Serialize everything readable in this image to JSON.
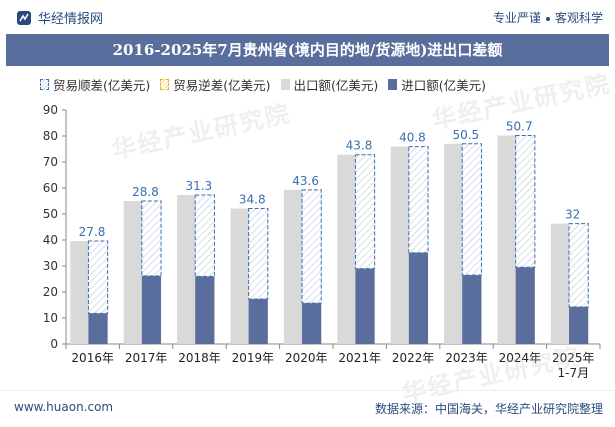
{
  "header": {
    "brand": "华经情报网",
    "slogan_left": "专业严谨",
    "slogan_right": "客观科学"
  },
  "footer": {
    "website": "www.huaon.com",
    "source": "数据来源：中国海关，华经产业研究院整理"
  },
  "watermark": "华经产业研究院",
  "colors": {
    "title_bg": "#5a6e9e",
    "export": "#d9d9d9",
    "import": "#5a6e9e",
    "surplus_border": "#3a6fb0",
    "deficit_border": "#e3b020",
    "label": "#3a6fb0"
  },
  "chart_data": {
    "type": "bar",
    "title": "2016-2025年7月贵州省(境内目的地/货源地)进出口差额",
    "legend": [
      "贸易顺差(亿美元)",
      "贸易逆差(亿美元)",
      "出口额(亿美元)",
      "进口额(亿美元)"
    ],
    "legend_placement": "top-left",
    "categories": [
      "2016年",
      "2017年",
      "2018年",
      "2019年",
      "2020年",
      "2021年",
      "2022年",
      "2023年",
      "2024年",
      "2025年\n1-7月"
    ],
    "ylim": [
      0,
      90
    ],
    "yticks": [
      0,
      10,
      20,
      30,
      40,
      50,
      60,
      70,
      80,
      90
    ],
    "grid": false,
    "series": [
      {
        "name": "出口额(亿美元)",
        "values": [
          39.6,
          55.0,
          57.3,
          52.1,
          59.3,
          72.8,
          75.9,
          77.0,
          80.2,
          46.3
        ]
      },
      {
        "name": "进口额(亿美元)",
        "values": [
          11.8,
          26.2,
          26.0,
          17.3,
          15.7,
          29.0,
          35.1,
          26.5,
          29.5,
          14.3
        ]
      },
      {
        "name": "贸易顺差(亿美元)",
        "values": [
          27.8,
          28.8,
          31.3,
          34.8,
          43.6,
          43.8,
          40.8,
          50.5,
          50.7,
          32
        ]
      }
    ],
    "data_labels": [
      "27.8",
      "28.8",
      "31.3",
      "34.8",
      "43.6",
      "43.8",
      "40.8",
      "50.5",
      "50.7",
      "32"
    ]
  }
}
